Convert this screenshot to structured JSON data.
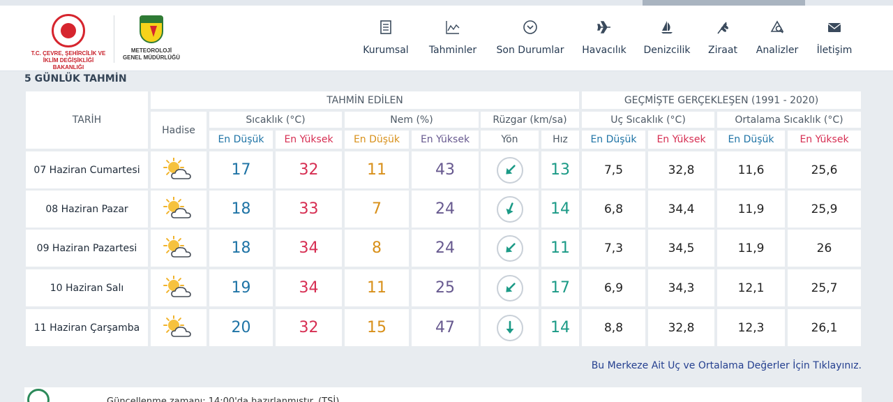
{
  "header": {
    "ministry_text_1": "T.C. ÇEVRE, ŞEHİRCİLİK VE",
    "ministry_text_2": "İKLİM DEĞİŞİKLİĞİ BAKANLIĞI",
    "mgm_badge": "METEOROLOJİ",
    "mgm_text_1": "METEOROLOJİ",
    "mgm_text_2": "GENEL MÜDÜRLÜĞÜ",
    "nav": [
      {
        "label": "Kurumsal",
        "icon": "document-icon"
      },
      {
        "label": "Tahminler",
        "icon": "chart-icon"
      },
      {
        "label": "Son Durumlar",
        "icon": "chevron-circle-icon"
      },
      {
        "label": "Havacılık",
        "icon": "airplane-icon"
      },
      {
        "label": "Denizcilik",
        "icon": "sail-icon"
      },
      {
        "label": "Ziraat",
        "icon": "wheat-icon"
      },
      {
        "label": "Analizler",
        "icon": "analysis-icon"
      },
      {
        "label": "İletişim",
        "icon": "mail-icon"
      }
    ]
  },
  "section_title": "5 GÜNLÜK TAHMİN",
  "table": {
    "group_forecast": "TAHMİN EDİLEN",
    "group_history": "GEÇMİŞTE GERÇEKLEŞEN (1991 - 2020)",
    "col_date": "TARİH",
    "col_hadise": "Hadise",
    "col_temp": "Sıcaklık (°C)",
    "col_humidity": "Nem (%)",
    "col_wind": "Rüzgar (km/sa)",
    "col_extreme": "Uç Sıcaklık (°C)",
    "col_avg": "Ortalama Sıcaklık (°C)",
    "sub_min": "En Düşük",
    "sub_max": "En Yüksek",
    "sub_dir": "Yön",
    "sub_speed": "Hız",
    "rows": [
      {
        "date": "07 Haziran Cumartesi",
        "icon": "partly-cloudy-icon",
        "tmin": "17",
        "tmax": "32",
        "hmin": "11",
        "hmax": "43",
        "wind_dir": "southwest",
        "wind_speed": "13",
        "ext_min": "7,5",
        "ext_max": "32,8",
        "avg_min": "11,6",
        "avg_max": "25,6"
      },
      {
        "date": "08 Haziran Pazar",
        "icon": "partly-cloudy-icon",
        "tmin": "18",
        "tmax": "33",
        "hmin": "7",
        "hmax": "24",
        "wind_dir": "south-southwest",
        "wind_speed": "14",
        "ext_min": "6,8",
        "ext_max": "34,4",
        "avg_min": "11,9",
        "avg_max": "25,9"
      },
      {
        "date": "09 Haziran Pazartesi",
        "icon": "partly-cloudy-icon",
        "tmin": "18",
        "tmax": "34",
        "hmin": "8",
        "hmax": "24",
        "wind_dir": "southwest",
        "wind_speed": "11",
        "ext_min": "7,3",
        "ext_max": "34,5",
        "avg_min": "11,9",
        "avg_max": "26"
      },
      {
        "date": "10 Haziran Salı",
        "icon": "partly-cloudy-icon",
        "tmin": "19",
        "tmax": "34",
        "hmin": "11",
        "hmax": "25",
        "wind_dir": "southwest",
        "wind_speed": "17",
        "ext_min": "6,9",
        "ext_max": "34,3",
        "avg_min": "12,1",
        "avg_max": "25,7"
      },
      {
        "date": "11 Haziran Çarşamba",
        "icon": "partly-cloudy-icon",
        "tmin": "20",
        "tmax": "32",
        "hmin": "15",
        "hmax": "47",
        "wind_dir": "south",
        "wind_speed": "14",
        "ext_min": "8,8",
        "ext_max": "32,8",
        "avg_min": "12,3",
        "avg_max": "26,1"
      }
    ]
  },
  "footer_link": "Bu Merkeze Ait Uç ve Ortalama Değerler İçin Tıklayınız.",
  "bottom_note": "Güncellenme zamanı: 14:00'da hazırlanmıştır. (TSİ)",
  "colors": {
    "blue": "#1f74a6",
    "red": "#d62e52",
    "orange": "#d8901a",
    "purple": "#67598f",
    "teal": "#1b9a86"
  }
}
